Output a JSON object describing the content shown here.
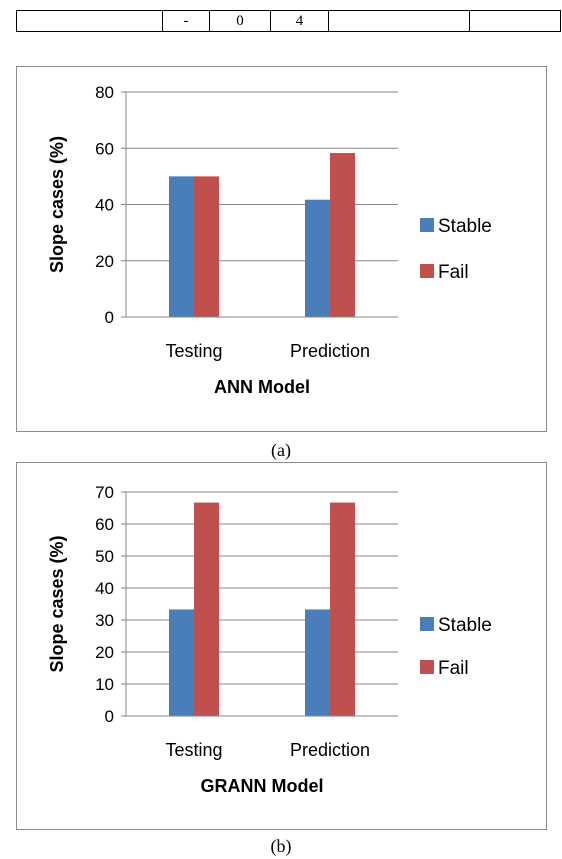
{
  "top_table": {
    "cells": [
      "",
      "",
      "-",
      "0",
      "4",
      "",
      ""
    ]
  },
  "captions": [
    "(a)",
    "(b)"
  ],
  "colors": {
    "stable": "#4a7ebb",
    "fail": "#c0504d",
    "grid": "#868686"
  },
  "chart_data": [
    {
      "type": "bar",
      "categories": [
        "Testing",
        "Prediction"
      ],
      "series": [
        {
          "name": "Stable",
          "values": [
            50,
            41.7
          ]
        },
        {
          "name": "Fail",
          "values": [
            50,
            58.3
          ]
        }
      ],
      "xlabel": "ANN Model",
      "ylabel": "Slope cases (%)",
      "ylim": [
        0,
        80
      ],
      "yticks": [
        0,
        20,
        40,
        60,
        80
      ],
      "grid": true,
      "legend": "right"
    },
    {
      "type": "bar",
      "categories": [
        "Testing",
        "Prediction"
      ],
      "series": [
        {
          "name": "Stable",
          "values": [
            33.3,
            33.3
          ]
        },
        {
          "name": "Fail",
          "values": [
            66.7,
            66.7
          ]
        }
      ],
      "xlabel": "GRANN Model",
      "ylabel": "Slope cases (%)",
      "ylim": [
        0,
        70
      ],
      "yticks": [
        0,
        10,
        20,
        30,
        40,
        50,
        60,
        70
      ],
      "grid": true,
      "legend": "right"
    }
  ]
}
